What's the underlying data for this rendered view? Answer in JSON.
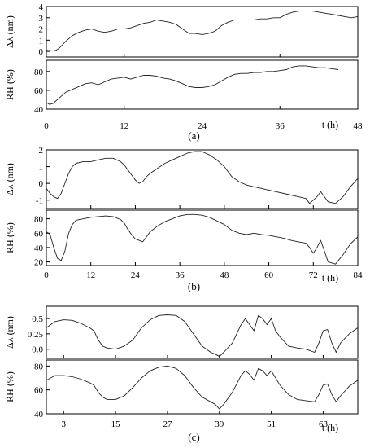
{
  "chart_data": [
    {
      "type": "line",
      "panel_label": "(a)",
      "xlabel": "t (h)",
      "xlim": [
        0,
        48
      ],
      "xticks": [
        0,
        12,
        24,
        36,
        48
      ],
      "subplots": [
        {
          "ylabel": "Δλ (nm)",
          "ylim": [
            -0.5,
            4
          ],
          "yticks": [
            0,
            1,
            2,
            3,
            4
          ],
          "series": [
            {
              "x": [
                0,
                1,
                1.5,
                2,
                3,
                4,
                5,
                6,
                7,
                8,
                9,
                10,
                11,
                12,
                13,
                14,
                15,
                16,
                17,
                18,
                19,
                20,
                21,
                22,
                23,
                24,
                25,
                26,
                27,
                28,
                29,
                30,
                31,
                32,
                33,
                34,
                35,
                36,
                37,
                38,
                39,
                40,
                41,
                42,
                43,
                44,
                45,
                46,
                47,
                48
              ],
              "values": [
                0.1,
                0.05,
                0.1,
                0.3,
                0.9,
                1.4,
                1.7,
                1.9,
                2.0,
                1.8,
                1.7,
                1.8,
                2.0,
                2.0,
                2.1,
                2.3,
                2.5,
                2.6,
                2.8,
                2.7,
                2.6,
                2.4,
                2.0,
                1.6,
                1.6,
                1.5,
                1.6,
                1.8,
                2.3,
                2.6,
                2.8,
                2.8,
                2.8,
                2.8,
                2.9,
                2.9,
                3.0,
                3.0,
                3.3,
                3.5,
                3.6,
                3.6,
                3.6,
                3.5,
                3.4,
                3.3,
                3.2,
                3.1,
                3.0,
                3.1
              ]
            }
          ]
        },
        {
          "ylabel": "RH (%)",
          "ylim": [
            40,
            92
          ],
          "yticks": [
            40,
            60,
            80
          ],
          "series": [
            {
              "x": [
                0,
                0.5,
                1,
                2,
                3,
                4,
                5,
                6,
                7,
                8,
                9,
                10,
                11,
                12,
                13,
                14,
                15,
                16,
                17,
                18,
                19,
                20,
                21,
                22,
                23,
                24,
                25,
                26,
                27,
                28,
                29,
                30,
                31,
                32,
                33,
                34,
                35,
                36,
                37,
                38,
                39,
                40,
                41,
                42,
                43,
                44,
                45
              ],
              "values": [
                47,
                45,
                46,
                52,
                58,
                61,
                64,
                67,
                68,
                66,
                69,
                72,
                73,
                74,
                72,
                74,
                76,
                76,
                75,
                73,
                72,
                70,
                67,
                64,
                63,
                63,
                64,
                66,
                70,
                74,
                77,
                78,
                78,
                79,
                79,
                80,
                80,
                81,
                82,
                85,
                86,
                86,
                85,
                84,
                84,
                83,
                82
              ]
            }
          ]
        }
      ]
    },
    {
      "type": "line",
      "panel_label": "(b)",
      "xlabel": "t (h)",
      "xlim": [
        0,
        84
      ],
      "xticks": [
        0,
        12,
        24,
        36,
        48,
        60,
        72,
        84
      ],
      "subplots": [
        {
          "ylabel": "Δλ (nm)",
          "ylim": [
            -1.5,
            2
          ],
          "yticks": [
            -1,
            0,
            1,
            2
          ],
          "series": [
            {
              "x": [
                0,
                1,
                2,
                3,
                4,
                5,
                6,
                7,
                8,
                10,
                12,
                14,
                16,
                18,
                20,
                21,
                22,
                23,
                24,
                25,
                26,
                27,
                28,
                30,
                32,
                34,
                36,
                38,
                40,
                42,
                44,
                46,
                48,
                50,
                52,
                54,
                56,
                58,
                60,
                62,
                64,
                66,
                68,
                70,
                71,
                72,
                73,
                74,
                75,
                76,
                78,
                80,
                82,
                84
              ],
              "values": [
                -0.3,
                -0.6,
                -0.8,
                -0.9,
                -0.6,
                0.0,
                0.6,
                1.0,
                1.2,
                1.3,
                1.3,
                1.4,
                1.5,
                1.5,
                1.3,
                1.1,
                0.8,
                0.5,
                0.2,
                0.0,
                0.1,
                0.4,
                0.6,
                0.9,
                1.2,
                1.4,
                1.6,
                1.8,
                1.9,
                1.9,
                1.7,
                1.4,
                1.0,
                0.4,
                0.1,
                -0.1,
                -0.2,
                -0.3,
                -0.4,
                -0.5,
                -0.6,
                -0.7,
                -0.8,
                -0.9,
                -1.2,
                -1.0,
                -0.8,
                -0.5,
                -0.8,
                -1.1,
                -1.2,
                -0.8,
                -0.2,
                0.3
              ]
            }
          ]
        },
        {
          "ylabel": "RH (%)",
          "ylim": [
            15,
            92
          ],
          "yticks": [
            20,
            40,
            60,
            80
          ],
          "series": [
            {
              "x": [
                0,
                1,
                2,
                3,
                4,
                5,
                6,
                7,
                8,
                10,
                12,
                14,
                16,
                18,
                20,
                21,
                22,
                23,
                24,
                25,
                26,
                27,
                28,
                30,
                32,
                34,
                36,
                38,
                40,
                42,
                44,
                46,
                48,
                50,
                52,
                54,
                56,
                58,
                60,
                62,
                64,
                66,
                68,
                70,
                71,
                72,
                73,
                74,
                75,
                76,
                78,
                80,
                82,
                84
              ],
              "values": [
                62,
                58,
                40,
                25,
                22,
                35,
                60,
                72,
                78,
                80,
                82,
                83,
                84,
                83,
                79,
                74,
                65,
                58,
                52,
                50,
                48,
                55,
                62,
                70,
                76,
                80,
                84,
                86,
                86,
                85,
                82,
                77,
                72,
                64,
                60,
                58,
                60,
                58,
                57,
                55,
                53,
                50,
                48,
                46,
                40,
                32,
                40,
                50,
                35,
                20,
                17,
                30,
                45,
                55
              ]
            }
          ]
        }
      ]
    },
    {
      "type": "line",
      "panel_label": "(c)",
      "xlabel": "t (h)",
      "xlim": [
        -1,
        71
      ],
      "xticks": [
        3,
        15,
        27,
        39,
        51,
        63
      ],
      "subplots": [
        {
          "ylabel": "Δλ (nm)",
          "ylim": [
            -0.15,
            0.7
          ],
          "yticks": [
            0.0,
            0.25,
            0.5
          ],
          "ytick_labels": [
            "0.0",
            "0.25",
            "0.5"
          ],
          "series": [
            {
              "x": [
                -1,
                0,
                1,
                3,
                5,
                7,
                9,
                10,
                11,
                12,
                13,
                15,
                17,
                19,
                21,
                23,
                25,
                27,
                29,
                31,
                33,
                35,
                37,
                38,
                39,
                40,
                42,
                44,
                45,
                46,
                47,
                48,
                49,
                50,
                51,
                52,
                53,
                55,
                57,
                59,
                61,
                62,
                63,
                64,
                65,
                66,
                67,
                69,
                71
              ],
              "values": [
                0.35,
                0.4,
                0.45,
                0.48,
                0.47,
                0.42,
                0.35,
                0.3,
                0.15,
                0.05,
                0.02,
                0.0,
                0.05,
                0.15,
                0.35,
                0.48,
                0.55,
                0.56,
                0.55,
                0.45,
                0.25,
                0.05,
                -0.05,
                -0.08,
                -0.12,
                -0.05,
                0.1,
                0.4,
                0.5,
                0.4,
                0.3,
                0.55,
                0.5,
                0.4,
                0.5,
                0.3,
                0.2,
                0.05,
                0.02,
                0.0,
                -0.05,
                0.1,
                0.3,
                0.32,
                0.1,
                -0.05,
                0.1,
                0.25,
                0.35
              ]
            }
          ]
        },
        {
          "ylabel": "RH (%)",
          "ylim": [
            40,
            85
          ],
          "yticks": [
            40,
            60,
            80
          ],
          "series": [
            {
              "x": [
                -1,
                0,
                1,
                3,
                5,
                7,
                9,
                10,
                11,
                12,
                13,
                15,
                17,
                19,
                21,
                23,
                25,
                27,
                29,
                31,
                33,
                35,
                37,
                38,
                39,
                40,
                42,
                44,
                45,
                46,
                47,
                48,
                49,
                50,
                51,
                52,
                53,
                55,
                57,
                59,
                61,
                62,
                63,
                64,
                65,
                66,
                67,
                69,
                71
              ],
              "values": [
                68,
                70,
                72,
                72,
                71,
                69,
                66,
                64,
                58,
                54,
                52,
                52,
                55,
                62,
                70,
                76,
                79,
                80,
                78,
                72,
                62,
                54,
                50,
                48,
                44,
                48,
                58,
                72,
                76,
                73,
                68,
                78,
                76,
                72,
                76,
                70,
                64,
                56,
                52,
                51,
                50,
                56,
                64,
                65,
                56,
                50,
                55,
                63,
                68
              ]
            }
          ]
        }
      ]
    }
  ]
}
